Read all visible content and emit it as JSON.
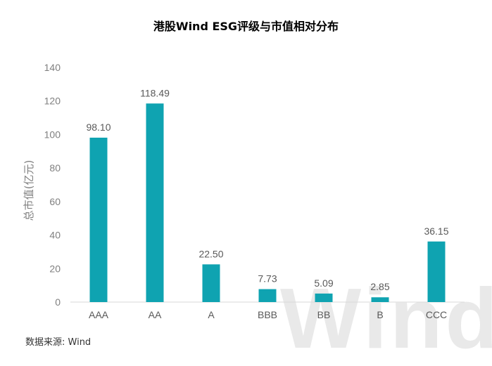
{
  "chart_data": {
    "type": "bar",
    "title": "港股Wind ESG评级与市值相对分布",
    "xlabel": "",
    "ylabel": "总市值(亿元)",
    "categories": [
      "AAA",
      "AA",
      "A",
      "BBB",
      "BB",
      "B",
      "CCC"
    ],
    "values": [
      98.1,
      118.49,
      22.5,
      7.73,
      5.09,
      2.85,
      36.15
    ],
    "value_labels": [
      "98.10",
      "118.49",
      "22.50",
      "7.73",
      "5.09",
      "2.85",
      "36.15"
    ],
    "ylim": [
      0,
      140
    ],
    "yticks": [
      0,
      20,
      40,
      60,
      80,
      100,
      120,
      140
    ],
    "grid": false,
    "legend": "none",
    "bar_color": "#0fa3b1"
  },
  "source": "数据来源: Wind",
  "watermark": "Wind"
}
